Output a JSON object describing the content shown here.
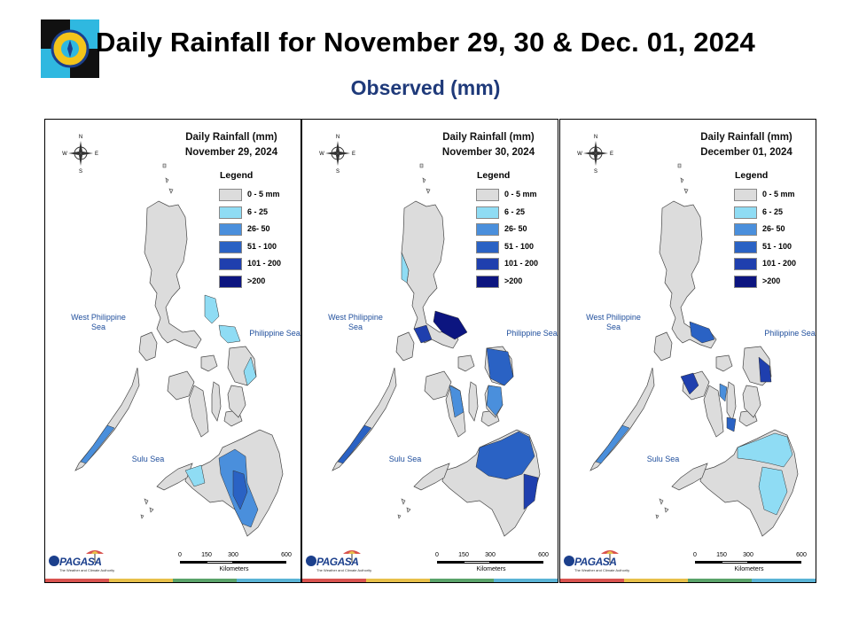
{
  "title": "Daily Rainfall for November 29, 30 & Dec. 01, 2024",
  "subtitle": "Observed (mm)",
  "legend": {
    "title": "Legend",
    "classes": [
      {
        "label": "0 - 5 mm",
        "color": "#dcdcdc"
      },
      {
        "label": "6 - 25",
        "color": "#8fdcf4"
      },
      {
        "label": "26- 50",
        "color": "#4a8fdc"
      },
      {
        "label": "51 - 100",
        "color": "#2a62c4"
      },
      {
        "label": "101 - 200",
        "color": "#1f3fae"
      },
      {
        "label": ">200",
        "color": "#0c1580"
      }
    ]
  },
  "panels": [
    {
      "heading": "Daily Rainfall (mm)",
      "date": "November 29, 2024"
    },
    {
      "heading": "Daily Rainfall (mm)",
      "date": "November 30, 2024"
    },
    {
      "heading": "Daily Rainfall (mm)",
      "date": "December 01, 2024"
    }
  ],
  "labels": {
    "west_sea": "West Philippine Sea",
    "phil_sea": "Philippine Sea",
    "sulu_sea": "Sulu Sea"
  },
  "scale": {
    "ticks": [
      "0",
      "150",
      "300",
      "600"
    ],
    "unit": "Kilometers"
  },
  "brand": {
    "name": "PAGASA",
    "tagline": "The Weather and Climate Authority"
  },
  "compass": {
    "n": "N",
    "s": "S",
    "e": "E",
    "w": "W"
  },
  "stripe_colors": [
    "#d9534f",
    "#e8c04a",
    "#5aa36a",
    "#5ab4d6"
  ]
}
